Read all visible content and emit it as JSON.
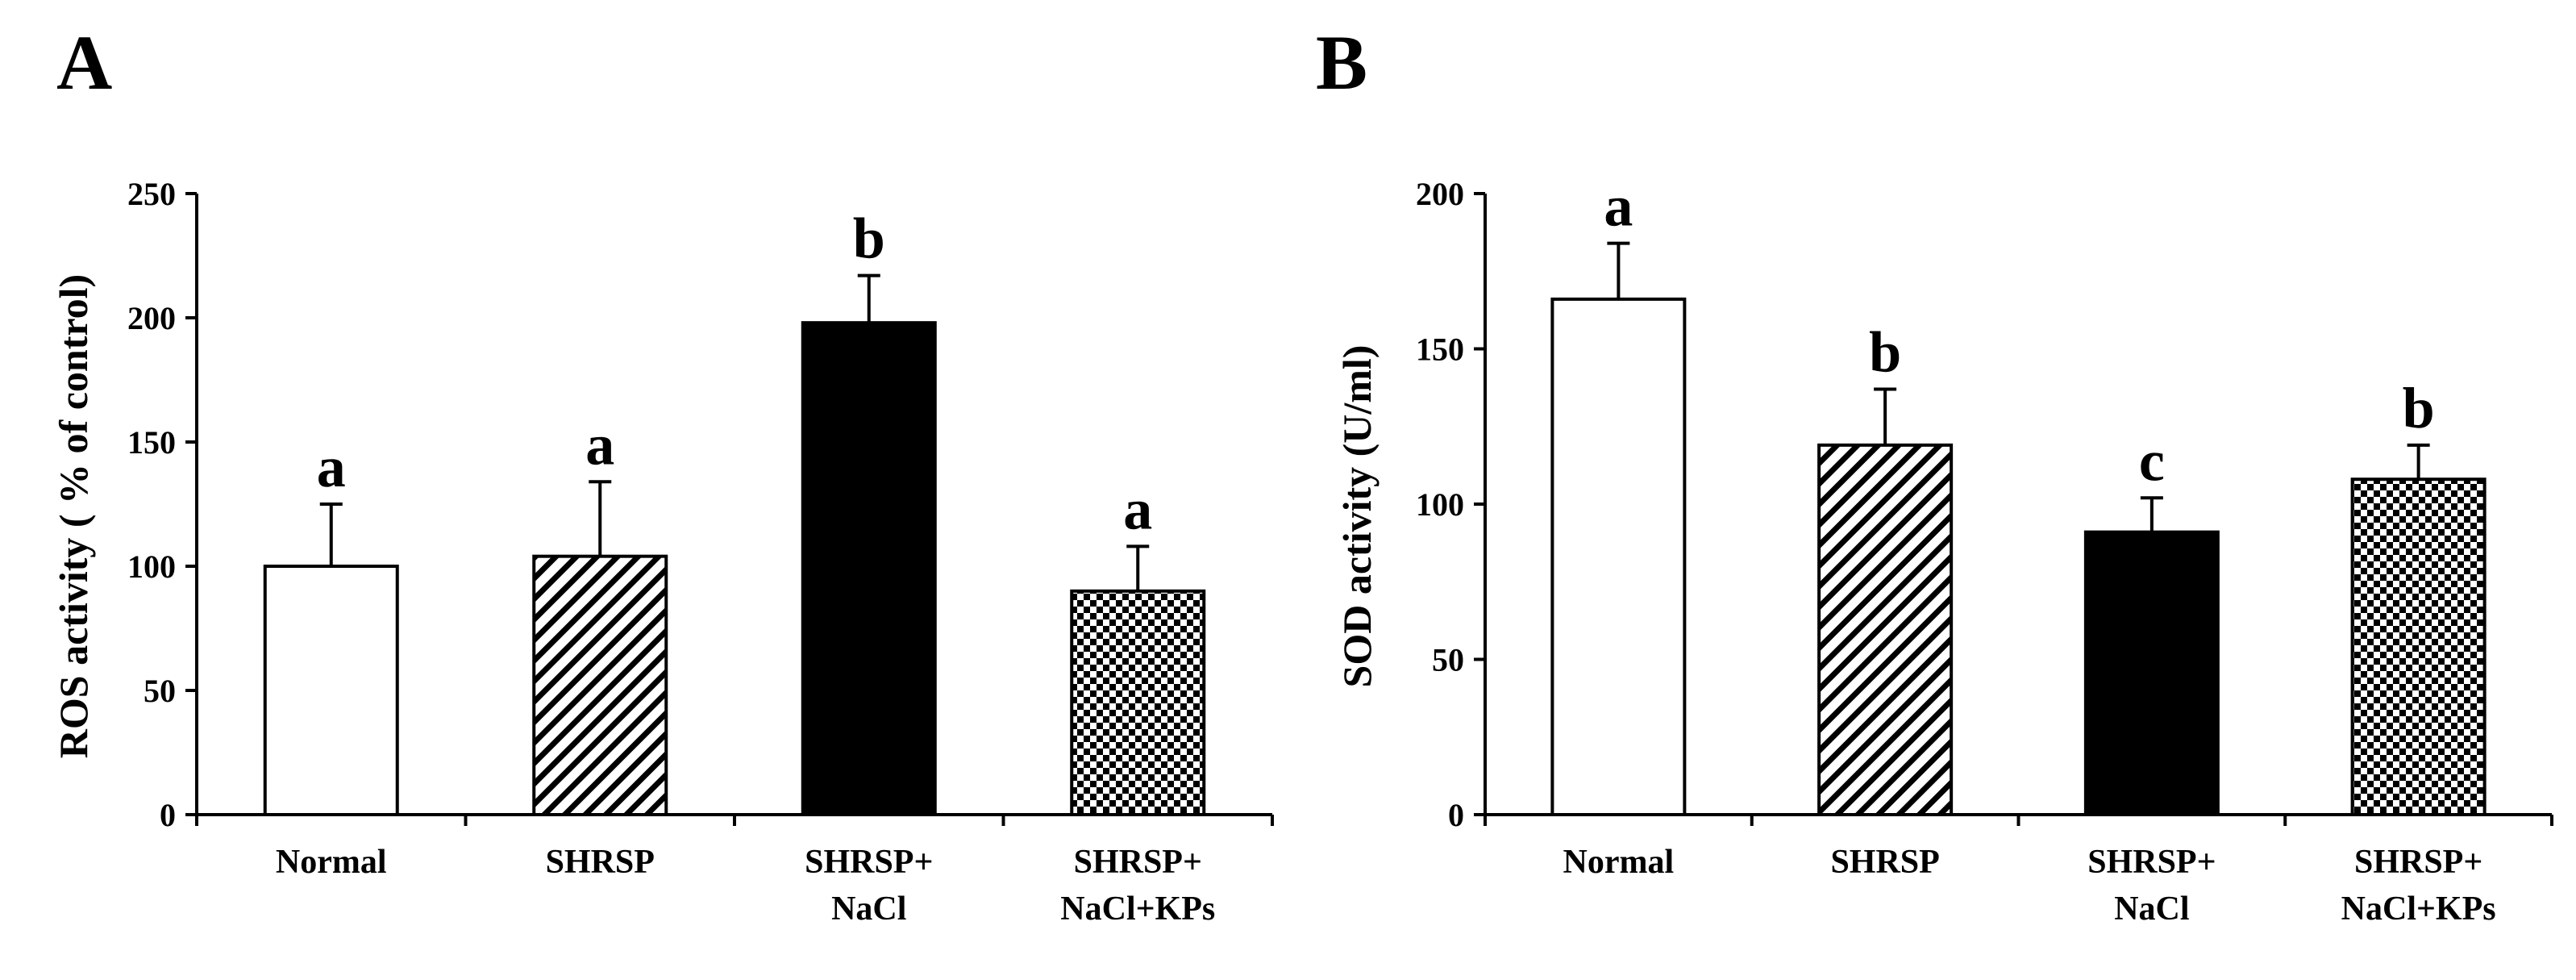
{
  "chart_data": [
    {
      "type": "bar",
      "panel": "A",
      "ylabel": "ROS activity ( % of control)",
      "ylim": [
        0,
        250
      ],
      "yticks": [
        0,
        50,
        100,
        150,
        200,
        250
      ],
      "categories": [
        [
          "Normal"
        ],
        [
          "SHRSP"
        ],
        [
          "SHRSP+",
          "NaCl"
        ],
        [
          "SHRSP+",
          "NaCl+KPs"
        ]
      ],
      "series": [
        {
          "name": "ROS activity",
          "values": [
            100,
            104,
            198,
            90
          ],
          "errors": [
            25,
            30,
            19,
            18
          ],
          "fills": [
            "white",
            "hatch",
            "black",
            "checker"
          ],
          "labels": [
            "a",
            "a",
            "b",
            "a"
          ]
        }
      ]
    },
    {
      "type": "bar",
      "panel": "B",
      "ylabel": "SOD activity  (U/ml)",
      "ylim": [
        0,
        200
      ],
      "yticks": [
        0,
        50,
        100,
        150,
        200
      ],
      "categories": [
        [
          "Normal"
        ],
        [
          "SHRSP"
        ],
        [
          "SHRSP+",
          "NaCl"
        ],
        [
          "SHRSP+",
          "NaCl+KPs"
        ]
      ],
      "series": [
        {
          "name": "SOD activity",
          "values": [
            166,
            119,
            91,
            108
          ],
          "errors": [
            18,
            18,
            11,
            11
          ],
          "fills": [
            "white",
            "hatch",
            "black",
            "checker"
          ],
          "labels": [
            "a",
            "b",
            "c",
            "b"
          ]
        }
      ]
    }
  ]
}
